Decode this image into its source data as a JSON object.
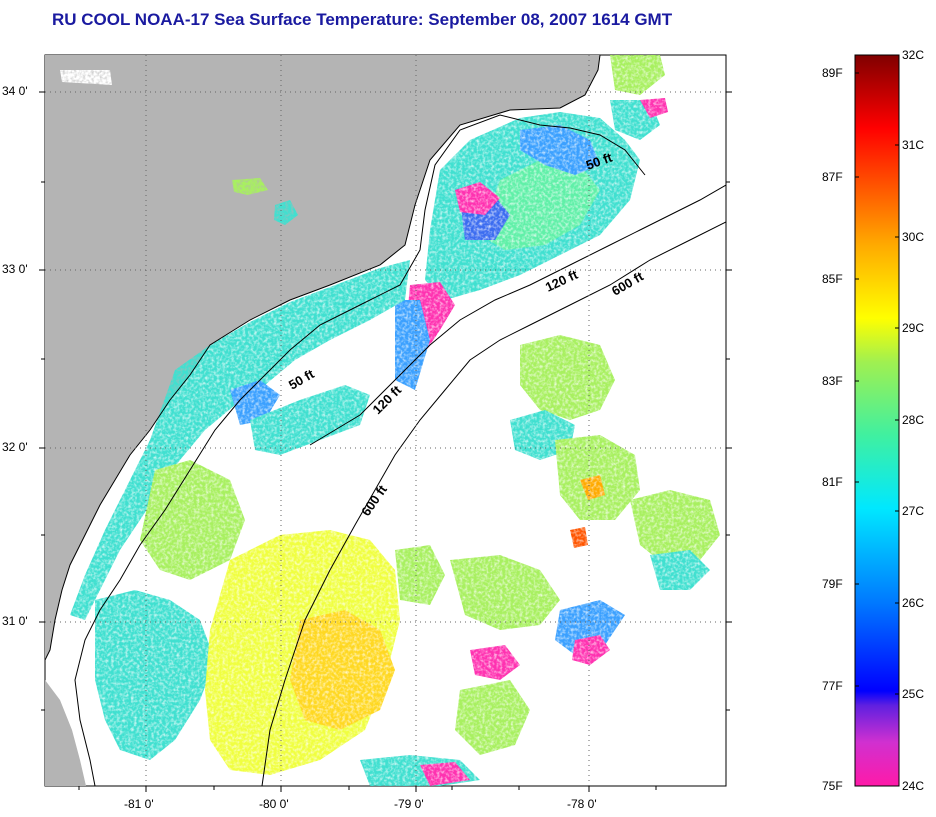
{
  "title": "RU COOL  NOAA-17  Sea Surface Temperature:  September 08, 2007 1614 GMT",
  "map": {
    "lat_range": [
      30.1,
      34.2
    ],
    "lon_range": [
      -81.75,
      -76.7
    ],
    "lat_ticks": [
      {
        "value": 34,
        "label": "34 0'"
      },
      {
        "value": 33,
        "label": "33 0'"
      },
      {
        "value": 32,
        "label": "32 0'"
      },
      {
        "value": 31,
        "label": "31 0'"
      }
    ],
    "lon_ticks": [
      {
        "value": -81,
        "label": "-81 0'"
      },
      {
        "value": -80,
        "label": "-80 0'"
      },
      {
        "value": -79,
        "label": "-79 0'"
      },
      {
        "value": -78,
        "label": "-78 0'"
      }
    ],
    "isobath_labels": [
      "50 ft",
      "50 ft",
      "120 ft",
      "120 ft",
      "600 ft",
      "600 ft"
    ]
  },
  "colorbar": {
    "fahrenheit": [
      {
        "value": 89,
        "label": "89F"
      },
      {
        "value": 87,
        "label": "87F"
      },
      {
        "value": 85,
        "label": "85F"
      },
      {
        "value": 83,
        "label": "83F"
      },
      {
        "value": 81,
        "label": "81F"
      },
      {
        "value": 79,
        "label": "79F"
      },
      {
        "value": 77,
        "label": "77F"
      },
      {
        "value": 75,
        "label": "75F"
      }
    ],
    "celsius": [
      {
        "value": 32,
        "label": "32C"
      },
      {
        "value": 31,
        "label": "31C"
      },
      {
        "value": 30,
        "label": "30C"
      },
      {
        "value": 29,
        "label": "29C"
      },
      {
        "value": 28,
        "label": "28C"
      },
      {
        "value": 27,
        "label": "27C"
      },
      {
        "value": 26,
        "label": "26C"
      },
      {
        "value": 25,
        "label": "25C"
      },
      {
        "value": 24,
        "label": "24C"
      }
    ],
    "colors": [
      "#ff1aa8",
      "#b02ad8",
      "#0000ff",
      "#0078ff",
      "#00e0ff",
      "#40f0a0",
      "#a0f050",
      "#ffff00",
      "#ffaa00",
      "#ff5500",
      "#ff0000",
      "#800000"
    ]
  },
  "colors": {
    "land": "#b4b4b4",
    "title": "#1a1aa0"
  }
}
